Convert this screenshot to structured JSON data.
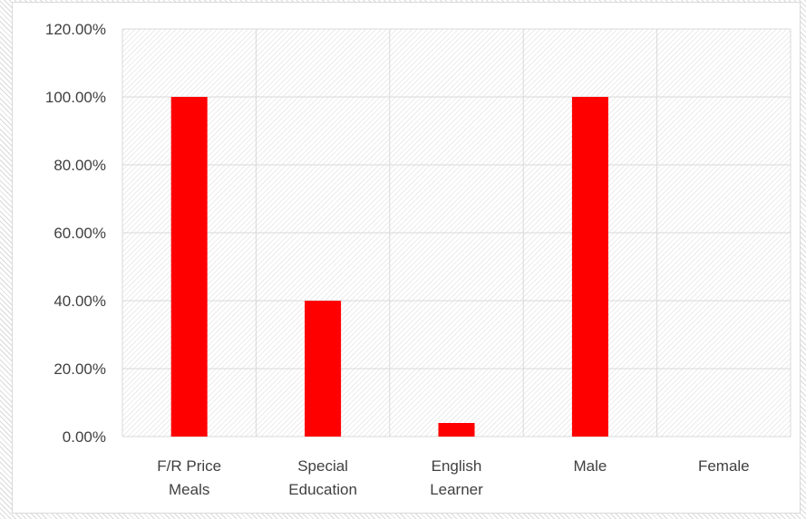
{
  "chart_data": {
    "type": "bar",
    "title": "",
    "xlabel": "",
    "ylabel": "",
    "categories": [
      [
        "F/R Price",
        "Meals"
      ],
      [
        "Special",
        "Education"
      ],
      [
        "English",
        "Learner"
      ],
      [
        "Male"
      ],
      [
        "Female"
      ]
    ],
    "series": [
      {
        "values": [
          1.0,
          0.4,
          0.04,
          1.0,
          0.0
        ]
      }
    ],
    "ylim": [
      0,
      1.2
    ],
    "yticks": [
      "0.00%",
      "20.00%",
      "40.00%",
      "60.00%",
      "80.00%",
      "100.00%",
      "120.00%"
    ],
    "grid": true,
    "legend": "none",
    "bar_color": "#ff0000",
    "grid_color": "#d9d9d9",
    "hatch_color": "#d9d9d9"
  }
}
